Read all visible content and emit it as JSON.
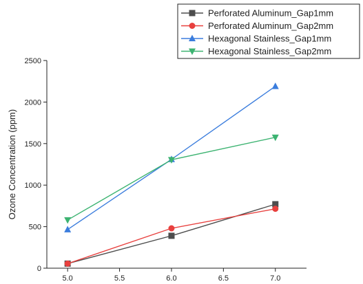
{
  "chart_data": {
    "type": "line",
    "title": "",
    "xlabel": "",
    "ylabel": "Ozone Concentration (ppm)",
    "xlim": [
      4.8,
      7.3
    ],
    "ylim": [
      0,
      2500
    ],
    "xticks": [
      5.0,
      5.5,
      6.0,
      6.5,
      7.0
    ],
    "xtick_labels": [
      "5.0",
      "5.5",
      "6.0",
      "6.5",
      "7.0"
    ],
    "yticks": [
      0,
      500,
      1000,
      1500,
      2000,
      2500
    ],
    "ytick_labels": [
      "0",
      "500",
      "1000",
      "1500",
      "2000",
      "2500"
    ],
    "grid": false,
    "legend_position": "top-right",
    "series": [
      {
        "name": "Perforated Aluminum_Gap1mm",
        "color": "#4d4d4d",
        "marker": "square",
        "x": [
          5.0,
          6.0,
          7.0
        ],
        "y": [
          55,
          390,
          770
        ]
      },
      {
        "name": "Perforated Aluminum_Gap2mm",
        "color": "#e8403e",
        "marker": "circle",
        "x": [
          5.0,
          6.0,
          7.0
        ],
        "y": [
          55,
          480,
          715
        ]
      },
      {
        "name": "Hexagonal Stainless_Gap1mm",
        "color": "#3b7ddd",
        "marker": "triangle-up",
        "x": [
          5.0,
          6.0,
          7.0
        ],
        "y": [
          465,
          1310,
          2190
        ]
      },
      {
        "name": "Hexagonal Stainless_Gap2mm",
        "color": "#3cb371",
        "marker": "triangle-down",
        "x": [
          5.0,
          6.0,
          7.0
        ],
        "y": [
          580,
          1305,
          1575
        ]
      }
    ]
  }
}
